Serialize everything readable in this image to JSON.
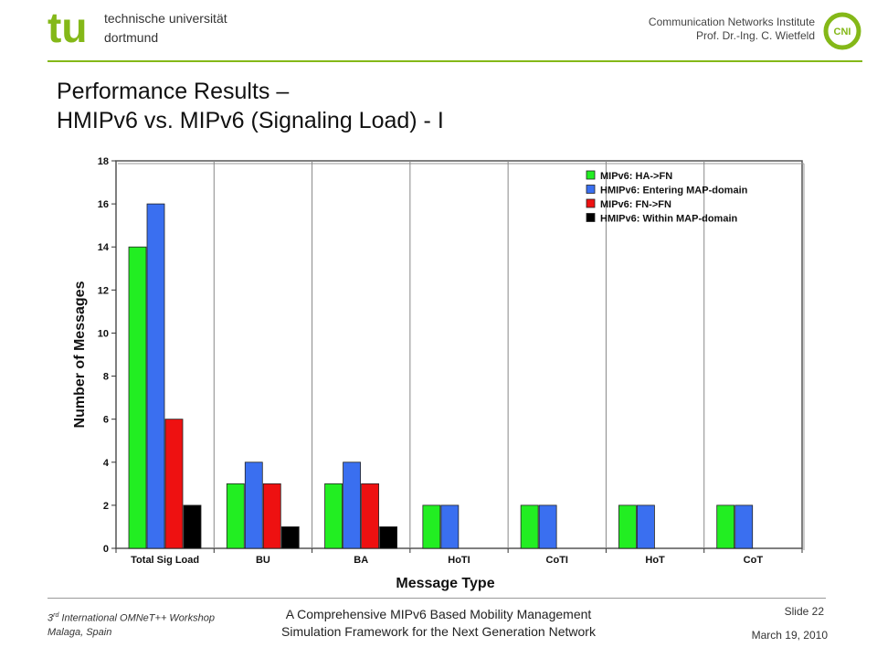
{
  "header": {
    "university_line1": "technische universität",
    "university_line2": "dortmund",
    "tu_logo_text": "tu",
    "institute": "Communication Networks Institute",
    "professor": "Prof. Dr.-Ing. C. Wietfeld",
    "cni_logo_text": "CNI",
    "accent_color": "#84b818"
  },
  "slide": {
    "title_line1": "Performance Results –",
    "title_line2": "HMIPv6 vs. MIPv6 (Signaling Load) - I"
  },
  "chart_data": {
    "type": "bar",
    "title": "",
    "xlabel": "Message Type",
    "ylabel": "Number of Messages",
    "ylim": [
      0,
      18
    ],
    "yticks": [
      0,
      2,
      4,
      6,
      8,
      10,
      12,
      14,
      16,
      18
    ],
    "grid": "vertical separators between categories",
    "legend_position": "top-right",
    "categories": [
      "Total Sig Load",
      "BU",
      "BA",
      "HoTI",
      "CoTI",
      "HoT",
      "CoT"
    ],
    "series": [
      {
        "name": "MIPv6: HA->FN",
        "color": "#22ee22",
        "values": [
          14,
          3,
          3,
          2,
          2,
          2,
          2
        ]
      },
      {
        "name": "HMIPv6: Entering MAP-domain",
        "color": "#3a6ff0",
        "values": [
          16,
          4,
          4,
          2,
          2,
          2,
          2
        ]
      },
      {
        "name": "MIPv6: FN->FN",
        "color": "#ee1111",
        "values": [
          6,
          3,
          3,
          null,
          null,
          null,
          null
        ]
      },
      {
        "name": "HMIPv6: Within MAP-domain",
        "color": "#000000",
        "values": [
          2,
          1,
          1,
          null,
          null,
          null,
          null
        ]
      }
    ]
  },
  "footer": {
    "workshop_ordinal": "3",
    "workshop_sup": "rd",
    "workshop_rest": " International OMNeT++ Workshop",
    "location": "Malaga, Spain",
    "talk_line1": "A Comprehensive MIPv6 Based Mobility Management",
    "talk_line2": "Simulation Framework for the Next Generation Network",
    "slide_number": "Slide 22",
    "date": "March 19, 2010"
  }
}
